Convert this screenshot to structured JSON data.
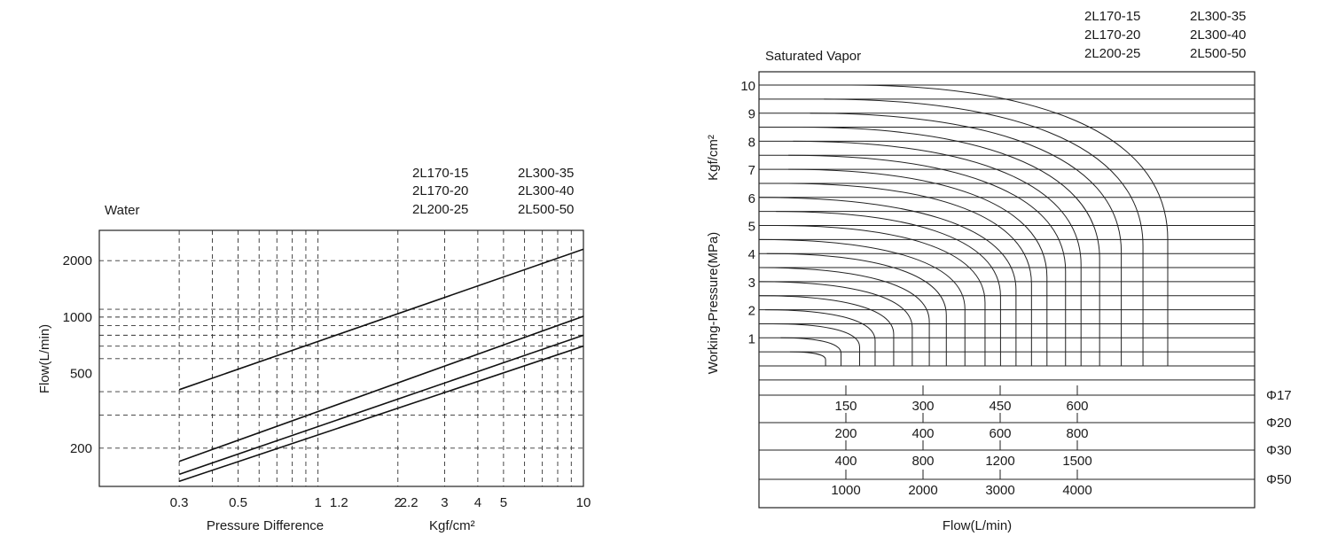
{
  "chart_data": [
    {
      "type": "line",
      "title": "Water",
      "xlabel": "Pressure Difference",
      "xunit": "Kgf/cm²",
      "ylabel": "Flow(L/min)",
      "x_scale": "log",
      "y_scale": "log",
      "xlim": [
        0.15,
        10
      ],
      "ylim": [
        125,
        2900
      ],
      "x_tick_values": [
        0.3,
        0.5,
        1,
        1.2,
        2,
        2.2,
        3,
        4,
        5,
        10
      ],
      "x_tick_labels": [
        "0.3",
        "0.5",
        "1",
        "1.2",
        "2",
        "2.2",
        "3",
        "4",
        "5",
        "10"
      ],
      "y_tick_values": [
        200,
        500,
        1000,
        2000
      ],
      "y_tick_labels": [
        "200",
        "500",
        "1000",
        "2000"
      ],
      "x_grid": [
        0.15,
        0.3,
        0.4,
        0.5,
        0.6,
        0.7,
        0.8,
        0.9,
        1,
        2,
        3,
        4,
        5,
        6,
        7,
        8,
        9
      ],
      "y_grid": [
        200,
        300,
        400,
        600,
        700,
        800,
        900,
        1000,
        1100,
        2000
      ],
      "model_labels": [
        [
          "2L170-15",
          "2L170-20",
          "2L200-25"
        ],
        [
          "2L300-35",
          "2L300-40",
          "2L500-50"
        ]
      ],
      "series": [
        {
          "x": [
            0.3,
            10
          ],
          "values": [
            410,
            2300
          ]
        },
        {
          "x": [
            0.3,
            10
          ],
          "values": [
            170,
            1010
          ]
        },
        {
          "x": [
            0.3,
            10
          ],
          "values": [
            145,
            800
          ]
        },
        {
          "x": [
            0.3,
            10
          ],
          "values": [
            133,
            700
          ]
        }
      ],
      "grid": true
    },
    {
      "type": "line",
      "title": "Saturated Vapor",
      "xlabel": "Flow(L/min)",
      "ylabel": "Working-Pressure(MPa)",
      "ylabel2": "Kgf/cm²",
      "model_labels": [
        [
          "2L170-15",
          "2L170-20",
          "2L200-25"
        ],
        [
          "2L300-35",
          "2L300-40",
          "2L500-50"
        ]
      ],
      "y_tick_values": [
        1,
        2,
        3,
        4,
        5,
        6,
        7,
        8,
        9,
        10
      ],
      "y_tick_labels": [
        "1",
        "2",
        "3",
        "4",
        "5",
        "6",
        "7",
        "8",
        "9",
        "10"
      ],
      "ylim": [
        -0.5,
        10
      ],
      "levels": [
        0.5,
        1,
        1.5,
        2,
        2.5,
        3,
        3.5,
        4,
        4.5,
        5,
        5.5,
        6,
        6.5,
        7,
        7.5,
        8,
        8.5,
        9,
        9.5,
        10
      ],
      "curve_start_x": [
        100,
        70,
        45,
        20,
        0,
        0,
        0,
        25,
        0,
        55,
        55,
        0,
        75,
        95,
        95,
        110,
        135,
        165,
        210,
        295
      ],
      "curve_end_x": [
        215,
        265,
        325,
        375,
        435,
        495,
        550,
        605,
        665,
        730,
        780,
        830,
        880,
        930,
        990,
        1040,
        1100,
        1170,
        1240,
        1320
      ],
      "flow_scales": [
        {
          "pipe": "Φ17",
          "ticks": [
            150,
            300,
            450,
            600
          ]
        },
        {
          "pipe": "Φ20",
          "ticks": [
            200,
            400,
            600,
            800
          ]
        },
        {
          "pipe": "Φ30",
          "ticks": [
            400,
            800,
            1200,
            1500
          ]
        },
        {
          "pipe": "Φ50",
          "ticks": [
            1000,
            2000,
            3000,
            4000
          ]
        }
      ],
      "flow_scale_fraction": [
        0.25,
        0.5,
        0.75,
        1.0
      ]
    }
  ]
}
